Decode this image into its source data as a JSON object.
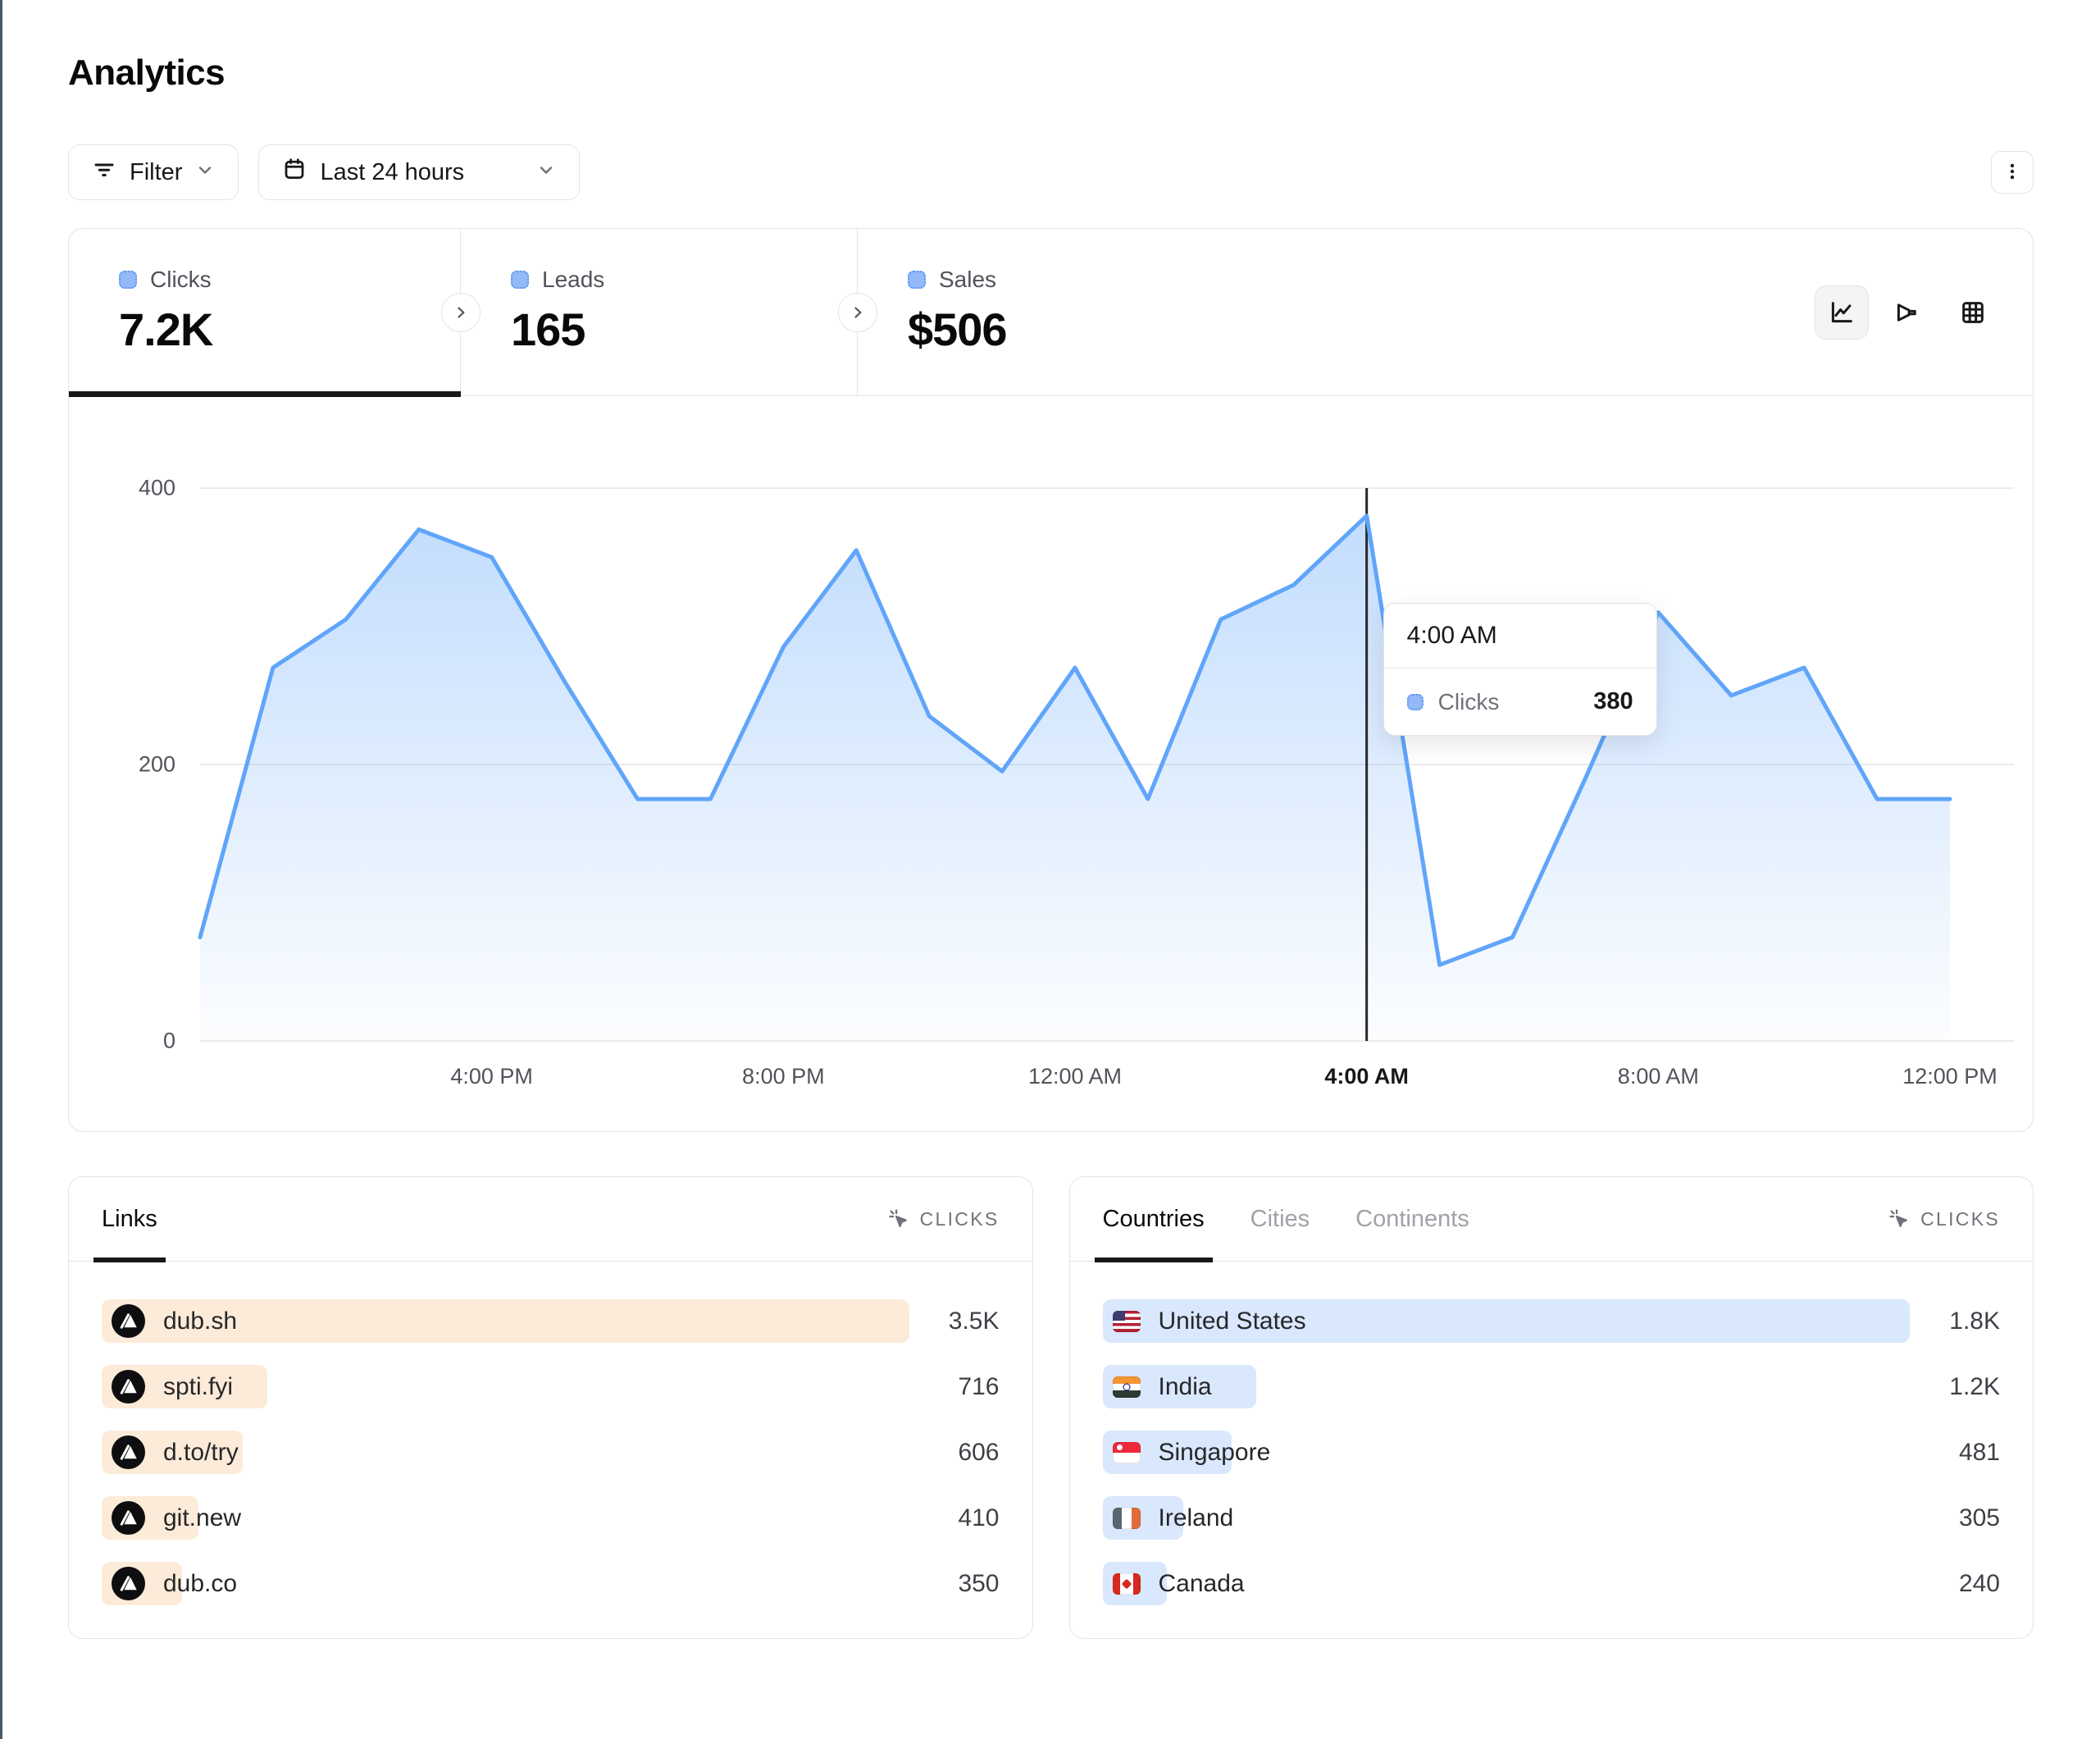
{
  "page": {
    "title": "Analytics"
  },
  "toolbar": {
    "filter": {
      "label": "Filter"
    },
    "date_range": {
      "label": "Last 24 hours"
    }
  },
  "stat_tabs": [
    {
      "label": "Clicks",
      "value": "7.2K",
      "active": true
    },
    {
      "label": "Leads",
      "value": "165",
      "active": false
    },
    {
      "label": "Sales",
      "value": "$506",
      "active": false
    }
  ],
  "chart_toggles": [
    {
      "name": "line-chart",
      "active": true
    },
    {
      "name": "funnel",
      "active": false
    },
    {
      "name": "table-grid",
      "active": false
    }
  ],
  "chart_data": {
    "type": "area",
    "series_name": "Clicks",
    "x": [
      "12:00 PM",
      "1:00 PM",
      "2:00 PM",
      "3:00 PM",
      "4:00 PM",
      "5:00 PM",
      "6:00 PM",
      "7:00 PM",
      "8:00 PM",
      "9:00 PM",
      "10:00 PM",
      "11:00 PM",
      "12:00 AM",
      "1:00 AM",
      "2:00 AM",
      "3:00 AM",
      "4:00 AM",
      "5:00 AM",
      "6:00 AM",
      "7:00 AM",
      "8:00 AM",
      "9:00 AM",
      "10:00 AM",
      "11:00 AM",
      "12:00 PM"
    ],
    "values": [
      75,
      270,
      305,
      370,
      350,
      260,
      175,
      175,
      285,
      355,
      235,
      195,
      270,
      175,
      305,
      330,
      380,
      55,
      75,
      190,
      310,
      250,
      270,
      175,
      175
    ],
    "ylim": [
      0,
      400
    ],
    "yticks": [
      0,
      200,
      400
    ],
    "x_axis_ticks": [
      {
        "index": 4,
        "label": "4:00 PM",
        "hovered": false
      },
      {
        "index": 8,
        "label": "8:00 PM",
        "hovered": false
      },
      {
        "index": 12,
        "label": "12:00 AM",
        "hovered": false
      },
      {
        "index": 16,
        "label": "4:00 AM",
        "hovered": true
      },
      {
        "index": 20,
        "label": "8:00 AM",
        "hovered": false
      },
      {
        "index": 24,
        "label": "12:00 PM",
        "hovered": false
      }
    ],
    "hovered_index": 16,
    "grid": true,
    "legend_position": "none",
    "line_color": "#60a5fa",
    "crosshair_color": "#27272a"
  },
  "chart_tooltip": {
    "title": "4:00 AM",
    "series": "Clicks",
    "value": "380"
  },
  "links_panel": {
    "tab_label": "Links",
    "metric_label": "CLICKS",
    "bar_color": "#fcebd8",
    "rows": [
      {
        "label": "dub.sh",
        "value": "3.5K",
        "bar_pct": 100
      },
      {
        "label": "spti.fyi",
        "value": "716",
        "bar_pct": 20.5
      },
      {
        "label": "d.to/try",
        "value": "606",
        "bar_pct": 17.5
      },
      {
        "label": "git.new",
        "value": "410",
        "bar_pct": 12
      },
      {
        "label": "dub.co",
        "value": "350",
        "bar_pct": 10
      }
    ]
  },
  "geo_panel": {
    "tabs": [
      {
        "label": "Countries",
        "active": true
      },
      {
        "label": "Cities",
        "active": false
      },
      {
        "label": "Continents",
        "active": false
      }
    ],
    "metric_label": "CLICKS",
    "bar_color": "#d9e8fc",
    "rows": [
      {
        "label": "United States",
        "value": "1.8K",
        "flag": "us",
        "bar_pct": 100
      },
      {
        "label": "India",
        "value": "1.2K",
        "flag": "in",
        "bar_pct": 19
      },
      {
        "label": "Singapore",
        "value": "481",
        "flag": "sg",
        "bar_pct": 16
      },
      {
        "label": "Ireland",
        "value": "305",
        "flag": "ie",
        "bar_pct": 10
      },
      {
        "label": "Canada",
        "value": "240",
        "flag": "ca",
        "bar_pct": 8
      }
    ]
  }
}
